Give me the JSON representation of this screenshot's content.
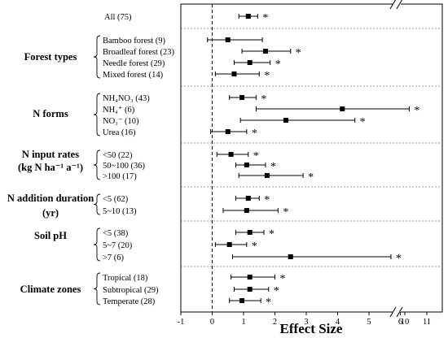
{
  "chart_data": {
    "type": "scatter",
    "subtype": "forest-plot",
    "xlabel": "Effect Size",
    "x_ticks": [
      "-1",
      "0",
      "1",
      "2",
      "3",
      "4",
      "5",
      "6",
      "10",
      "11"
    ],
    "axis_break": "between 6 and 10",
    "reference_line_x": 0,
    "groups": [
      {
        "title": "",
        "title_lines": [],
        "rows": [
          {
            "label": "All (75)",
            "mean": 1.15,
            "ci": [
              0.85,
              1.45
            ],
            "sig": "*"
          }
        ]
      },
      {
        "title": "Forest types",
        "title_lines": [
          "Forest types"
        ],
        "rows": [
          {
            "label": "Bamboo forest (9)",
            "mean": 0.5,
            "ci": [
              -0.15,
              1.6
            ],
            "sig": ""
          },
          {
            "label": "Broadleaf forest (23)",
            "mean": 1.7,
            "ci": [
              0.95,
              2.5
            ],
            "sig": "*"
          },
          {
            "label": "Needle forest (29)",
            "mean": 1.2,
            "ci": [
              0.7,
              1.85
            ],
            "sig": "*"
          },
          {
            "label": "Mixed forest (14)",
            "mean": 0.7,
            "ci": [
              0.1,
              1.5
            ],
            "sig": "*"
          }
        ]
      },
      {
        "title": "N forms",
        "title_lines": [
          "N forms"
        ],
        "rows": [
          {
            "label": "NH₄NO₃ (43)",
            "mean": 0.95,
            "ci": [
              0.55,
              1.4
            ],
            "sig": "*"
          },
          {
            "label": "NH₄⁺ (6)",
            "mean": 4.15,
            "ci": [
              1.4,
              10.2
            ],
            "sig": "*"
          },
          {
            "label": "NO₃⁻ (10)",
            "mean": 2.35,
            "ci": [
              0.9,
              4.55
            ],
            "sig": "*"
          },
          {
            "label": "Urea (16)",
            "mean": 0.5,
            "ci": [
              -0.05,
              1.1
            ],
            "sig": "*"
          }
        ]
      },
      {
        "title": "N input rates (kg N ha⁻¹ a⁻¹)",
        "title_lines": [
          "N input rates",
          "(kg N ha⁻¹ a⁻¹)"
        ],
        "rows": [
          {
            "label": "<50 (22)",
            "mean": 0.6,
            "ci": [
              0.15,
              1.15
            ],
            "sig": "*"
          },
          {
            "label": "50~100 (36)",
            "mean": 1.1,
            "ci": [
              0.75,
              1.7
            ],
            "sig": "*"
          },
          {
            "label": ">100 (17)",
            "mean": 1.75,
            "ci": [
              0.85,
              2.9
            ],
            "sig": "*"
          }
        ]
      },
      {
        "title": "N addition duration (yr)",
        "title_lines": [
          "N addition duration",
          "(yr)"
        ],
        "rows": [
          {
            "label": "<5 (62)",
            "mean": 1.15,
            "ci": [
              0.75,
              1.5
            ],
            "sig": "*"
          },
          {
            "label": "5~10 (13)",
            "mean": 1.1,
            "ci": [
              0.35,
              2.1
            ],
            "sig": "*"
          }
        ]
      },
      {
        "title": "Soil pH",
        "title_lines": [
          "Soil pH"
        ],
        "rows": [
          {
            "label": "<5 (38)",
            "mean": 1.2,
            "ci": [
              0.75,
              1.65
            ],
            "sig": "*"
          },
          {
            "label": "5~7 (20)",
            "mean": 0.55,
            "ci": [
              0.1,
              1.1
            ],
            "sig": "*"
          },
          {
            "label": ">7 (6)",
            "mean": 2.5,
            "ci": [
              0.65,
              5.7
            ],
            "sig": "*"
          }
        ]
      },
      {
        "title": "Climate zones",
        "title_lines": [
          "Climate zones"
        ],
        "rows": [
          {
            "label": "Tropical (18)",
            "mean": 1.2,
            "ci": [
              0.6,
              2.0
            ],
            "sig": "*"
          },
          {
            "label": "Subtropical (29)",
            "mean": 1.2,
            "ci": [
              0.7,
              1.8
            ],
            "sig": "*"
          },
          {
            "label": "Temperate (28)",
            "mean": 0.95,
            "ci": [
              0.55,
              1.55
            ],
            "sig": "*"
          }
        ]
      }
    ]
  }
}
